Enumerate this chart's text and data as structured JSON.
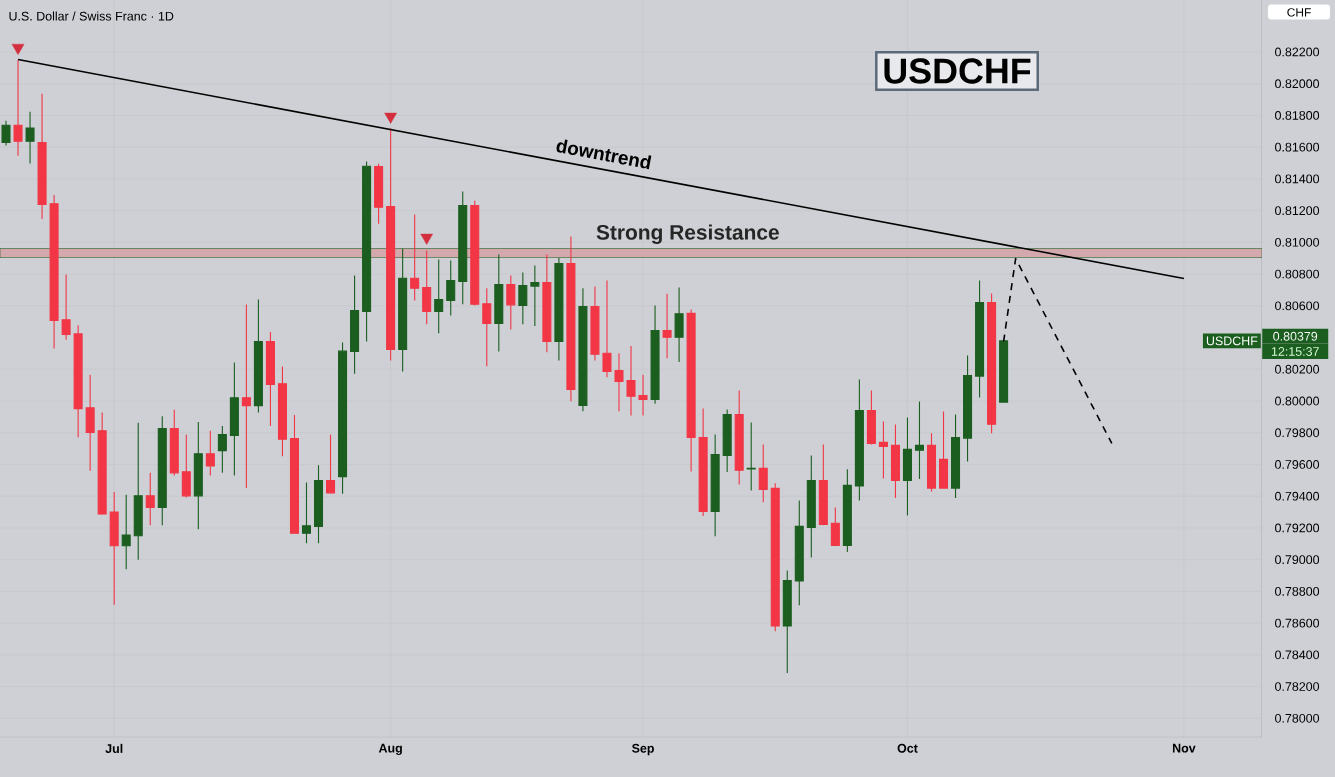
{
  "chart_data": {
    "type": "candlestick",
    "title": "U.S. Dollar / Swiss Franc · 1D",
    "categories": [
      null,
      null,
      null,
      null,
      null,
      null,
      null,
      null,
      null,
      "Jul",
      null,
      null,
      null,
      null,
      null,
      null,
      null,
      null,
      null,
      null,
      null,
      null,
      null,
      null,
      null,
      null,
      null,
      null,
      null,
      null,
      null,
      null,
      "Aug",
      null,
      null,
      null,
      null,
      null,
      null,
      null,
      null,
      null,
      null,
      null,
      null,
      null,
      null,
      null,
      null,
      null,
      null,
      null,
      null,
      "Sep",
      null,
      null,
      null,
      null,
      null,
      null,
      null,
      null,
      null,
      null,
      null,
      null,
      null,
      null,
      null,
      null,
      null,
      null,
      null,
      null,
      null,
      "Oct",
      null,
      null,
      null,
      null,
      null,
      null,
      null,
      null,
      null,
      null,
      null,
      null,
      null,
      null,
      null,
      null,
      null,
      null,
      null,
      null,
      null,
      null,
      "Nov",
      null,
      null,
      null,
      null,
      null,
      null
    ],
    "ohlc": [
      [
        0.81629,
        0.81767,
        0.8161,
        0.81738
      ],
      [
        0.81738,
        0.82149,
        0.81545,
        0.81637
      ],
      [
        0.81637,
        0.81823,
        0.81497,
        0.81721
      ],
      [
        0.81629,
        0.81936,
        0.81147,
        0.81239
      ],
      [
        0.81243,
        0.81299,
        0.80331,
        0.80507
      ],
      [
        0.80512,
        0.80797,
        0.80386,
        0.8042
      ],
      [
        0.80423,
        0.80478,
        0.79771,
        0.79952
      ],
      [
        0.79957,
        0.80165,
        0.79561,
        0.79802
      ],
      [
        0.79812,
        0.79928,
        0.79283,
        0.79288
      ],
      [
        0.793,
        0.79426,
        0.78716,
        0.79088
      ],
      [
        0.79088,
        0.79409,
        0.78939,
        0.79155
      ],
      [
        0.79151,
        0.79863,
        0.78999,
        0.79402
      ],
      [
        0.79402,
        0.79547,
        0.79216,
        0.79329
      ],
      [
        0.79329,
        0.79904,
        0.79216,
        0.79827
      ],
      [
        0.79827,
        0.79945,
        0.7953,
        0.79547
      ],
      [
        0.79554,
        0.79788,
        0.79392,
        0.79402
      ],
      [
        0.79402,
        0.79867,
        0.79192,
        0.79667
      ],
      [
        0.79667,
        0.79812,
        0.7953,
        0.7959
      ],
      [
        0.79687,
        0.79843,
        0.79547,
        0.79788
      ],
      [
        0.79783,
        0.80242,
        0.7953,
        0.8002
      ],
      [
        0.8002,
        0.80608,
        0.79452,
        0.79971
      ],
      [
        0.79971,
        0.8064,
        0.79928,
        0.80374
      ],
      [
        0.80374,
        0.80435,
        0.79843,
        0.80104
      ],
      [
        0.80109,
        0.80218,
        0.79651,
        0.79759
      ],
      [
        0.79764,
        0.79911,
        0.79163,
        0.79167
      ],
      [
        0.79167,
        0.79486,
        0.79103,
        0.79213
      ],
      [
        0.79209,
        0.79595,
        0.79103,
        0.79498
      ],
      [
        0.79498,
        0.79788,
        0.79416,
        0.79421
      ],
      [
        0.79523,
        0.80368,
        0.79416,
        0.80314
      ],
      [
        0.80312,
        0.80791,
        0.80172,
        0.8057
      ],
      [
        0.80564,
        0.81509,
        0.80375,
        0.8148
      ],
      [
        0.81478,
        0.81495,
        0.81117,
        0.81221
      ],
      [
        0.81226,
        0.81719,
        0.80255,
        0.80325
      ],
      [
        0.80325,
        0.80959,
        0.80186,
        0.80774
      ],
      [
        0.80774,
        0.81175,
        0.80633,
        0.80711
      ],
      [
        0.80715,
        0.80948,
        0.80484,
        0.80564
      ],
      [
        0.80564,
        0.80892,
        0.80427,
        0.8064
      ],
      [
        0.80633,
        0.80885,
        0.80539,
        0.80759
      ],
      [
        0.80753,
        0.8132,
        0.8061,
        0.81232
      ],
      [
        0.81232,
        0.81262,
        0.80602,
        0.8061
      ],
      [
        0.80613,
        0.80711,
        0.80219,
        0.80489
      ],
      [
        0.80489,
        0.80923,
        0.80312,
        0.80734
      ],
      [
        0.80734,
        0.80791,
        0.80451,
        0.80606
      ],
      [
        0.80602,
        0.8081,
        0.80484,
        0.80728
      ],
      [
        0.80724,
        0.80854,
        0.80472,
        0.80747
      ],
      [
        0.80747,
        0.80923,
        0.80308,
        0.80375
      ],
      [
        0.80375,
        0.80902,
        0.80255,
        0.80867
      ],
      [
        0.80867,
        0.81037,
        0.79999,
        0.80073
      ],
      [
        0.79972,
        0.80711,
        0.79936,
        0.80596
      ],
      [
        0.80596,
        0.80722,
        0.80255,
        0.80295
      ],
      [
        0.80301,
        0.80759,
        0.8015,
        0.80186
      ],
      [
        0.80192,
        0.80301,
        0.79936,
        0.80123
      ],
      [
        0.80129,
        0.80346,
        0.79909,
        0.8003
      ],
      [
        0.80035,
        0.80165,
        0.79909,
        0.8001
      ],
      [
        0.8001,
        0.80602,
        0.79983,
        0.80444
      ],
      [
        0.80444,
        0.80676,
        0.8027,
        0.80402
      ],
      [
        0.80402,
        0.80715,
        0.80245,
        0.8055
      ],
      [
        0.80552,
        0.80577,
        0.79556,
        0.7977
      ],
      [
        0.7977,
        0.79953,
        0.79275,
        0.79304
      ],
      [
        0.79304,
        0.79789,
        0.79147,
        0.79663
      ],
      [
        0.79657,
        0.79947,
        0.79552,
        0.79915
      ],
      [
        0.79915,
        0.80066,
        0.79474,
        0.79564
      ],
      [
        0.79572,
        0.79865,
        0.79436,
        0.79575
      ],
      [
        0.79575,
        0.79726,
        0.79361,
        0.79443
      ],
      [
        0.79449,
        0.79481,
        0.78548,
        0.78582
      ],
      [
        0.78582,
        0.78932,
        0.78285,
        0.78869
      ],
      [
        0.78865,
        0.79373,
        0.78712,
        0.7921
      ],
      [
        0.79203,
        0.79657,
        0.79014,
        0.79499
      ],
      [
        0.79499,
        0.79726,
        0.79216,
        0.79222
      ],
      [
        0.79229,
        0.79329,
        0.7909,
        0.7909
      ],
      [
        0.7909,
        0.79569,
        0.79048,
        0.79468
      ],
      [
        0.79464,
        0.80136,
        0.79373,
        0.7994
      ],
      [
        0.7994,
        0.80066,
        0.79726,
        0.79733
      ],
      [
        0.79739,
        0.79871,
        0.79512,
        0.79714
      ],
      [
        0.7972,
        0.79852,
        0.79388,
        0.79499
      ],
      [
        0.79499,
        0.79896,
        0.79279,
        0.79695
      ],
      [
        0.7969,
        0.79997,
        0.79508,
        0.7972
      ],
      [
        0.7972,
        0.79796,
        0.7943,
        0.79451
      ],
      [
        0.79632,
        0.79934,
        0.79451,
        0.79451
      ],
      [
        0.79451,
        0.79915,
        0.79388,
        0.7977
      ],
      [
        0.79766,
        0.80287,
        0.79619,
        0.80161
      ],
      [
        0.80157,
        0.80759,
        0.80022,
        0.80621
      ],
      [
        0.80621,
        0.80678,
        0.79797,
        0.79854
      ],
      [
        0.79993,
        0.80379,
        0.79993,
        0.80379
      ],
      null,
      null,
      null,
      null,
      null,
      null,
      null,
      null,
      null,
      null,
      null,
      null,
      null,
      null,
      null,
      null,
      null,
      null,
      null,
      null,
      null
    ],
    "colors": [
      "#1b5e20",
      "#f23645",
      "#1b5e20",
      "#f23645",
      "#f23645",
      "#f23645",
      "#f23645",
      "#f23645",
      "#f23645",
      "#f23645",
      "#1b5e20",
      "#1b5e20",
      "#f23645",
      "#1b5e20",
      "#f23645",
      "#f23645",
      "#1b5e20",
      "#f23645",
      "#1b5e20",
      "#1b5e20",
      "#f23645",
      "#1b5e20",
      "#f23645",
      "#f23645",
      "#f23645",
      "#1b5e20",
      "#1b5e20",
      "#f23645",
      "#1b5e20",
      "#1b5e20",
      "#1b5e20",
      "#f23645",
      "#f23645",
      "#1b5e20",
      "#f23645",
      "#f23645",
      "#1b5e20",
      "#1b5e20",
      "#1b5e20",
      "#f23645",
      "#f23645",
      "#1b5e20",
      "#f23645",
      "#1b5e20",
      "#1b5e20",
      "#f23645",
      "#1b5e20",
      "#f23645",
      "#1b5e20",
      "#f23645",
      "#f23645",
      "#f23645",
      "#f23645",
      "#f23645",
      "#1b5e20",
      "#f23645",
      "#1b5e20",
      "#f23645",
      "#f23645",
      "#1b5e20",
      "#1b5e20",
      "#f23645",
      "#1b5e20",
      "#f23645",
      "#f23645",
      "#1b5e20",
      "#1b5e20",
      "#1b5e20",
      "#f23645",
      "#f23645",
      "#1b5e20",
      "#1b5e20",
      "#f23645",
      "#f23645",
      "#f23645",
      "#1b5e20",
      "#1b5e20",
      "#f23645",
      "#f23645",
      "#1b5e20",
      "#1b5e20",
      "#1b5e20",
      "#f23645",
      "#1b5e20",
      null,
      null,
      null,
      null,
      null,
      null,
      null,
      null,
      null,
      null,
      null,
      null,
      null,
      null,
      null,
      null,
      null,
      null,
      null,
      null,
      null
    ],
    "series": [
      {
        "type": "line",
        "color": "#000000",
        "line_style": "solid",
        "values": [
          null,
          0.82152,
          null,
          null,
          null,
          null,
          null,
          null,
          null,
          null,
          null,
          null,
          null,
          null,
          null,
          null,
          null,
          null,
          null,
          null,
          null,
          null,
          null,
          null,
          null,
          null,
          null,
          null,
          null,
          null,
          null,
          null,
          null,
          null,
          null,
          null,
          null,
          null,
          null,
          null,
          null,
          null,
          null,
          null,
          null,
          null,
          null,
          null,
          null,
          null,
          null,
          null,
          null,
          null,
          null,
          null,
          null,
          null,
          null,
          null,
          null,
          null,
          null,
          null,
          null,
          null,
          null,
          null,
          null,
          null,
          null,
          null,
          null,
          null,
          null,
          null,
          null,
          null,
          null,
          null,
          null,
          null,
          null,
          null,
          null,
          null,
          null,
          null,
          null,
          null,
          null,
          null,
          null,
          null,
          null,
          null,
          null,
          null,
          0.80772,
          null,
          null,
          null,
          null,
          null,
          null
        ]
      },
      {
        "type": "line",
        "color": "#000000",
        "line_style": "dashed",
        "values": [
          null,
          null,
          null,
          null,
          null,
          null,
          null,
          null,
          null,
          null,
          null,
          null,
          null,
          null,
          null,
          null,
          null,
          null,
          null,
          null,
          null,
          null,
          null,
          null,
          null,
          null,
          null,
          null,
          null,
          null,
          null,
          null,
          null,
          null,
          null,
          null,
          null,
          null,
          null,
          null,
          null,
          null,
          null,
          null,
          null,
          null,
          null,
          null,
          null,
          null,
          null,
          null,
          null,
          null,
          null,
          null,
          null,
          null,
          null,
          null,
          null,
          null,
          null,
          null,
          null,
          null,
          null,
          null,
          null,
          null,
          null,
          null,
          null,
          null,
          null,
          null,
          null,
          null,
          null,
          null,
          null,
          null,
          null,
          0.80375,
          0.80898,
          null,
          null,
          null,
          null,
          null,
          null,
          null,
          0.79733,
          null,
          null,
          null,
          null,
          null,
          null,
          null,
          null,
          null,
          null,
          null,
          null
        ]
      },
      {
        "type": "scatter",
        "color": "#d32f3f",
        "marker": "triangle",
        "values": [
          null,
          0.82227,
          null,
          null,
          null,
          null,
          null,
          null,
          null,
          null,
          null,
          null,
          null,
          null,
          null,
          null,
          null,
          null,
          null,
          null,
          null,
          null,
          null,
          null,
          null,
          null,
          null,
          null,
          null,
          null,
          null,
          null,
          0.81793,
          null,
          null,
          0.8103,
          null,
          null,
          null,
          null,
          null,
          null,
          null,
          null,
          null,
          null,
          null,
          null,
          null,
          null,
          null,
          null,
          null,
          null,
          null,
          null,
          null,
          null,
          null,
          null,
          null,
          null,
          null,
          null,
          null,
          null,
          null,
          null,
          null,
          null,
          null,
          null,
          null,
          null,
          null,
          null,
          null,
          null,
          null,
          null,
          null,
          null,
          null,
          null,
          null,
          null,
          null,
          null,
          null,
          null,
          null,
          null,
          null,
          null,
          null,
          null,
          null,
          null,
          null,
          null,
          null,
          null,
          null,
          null,
          null
        ]
      }
    ],
    "bands": [
      {
        "axis": "y",
        "from": 0.80904,
        "to": 0.80961,
        "label": "Strong Resistance",
        "color": "#d3a9ae"
      }
    ],
    "annotations": [
      "USDCHF",
      "CHF",
      "USDCHF",
      "0.80379",
      "12:15:37",
      "downtrend"
    ],
    "ylim": [
      0.7788,
      0.8262
    ],
    "yticks": [
      {
        "value": 0.78,
        "label": "0.78000"
      },
      {
        "value": 0.782,
        "label": "0.78200"
      },
      {
        "value": 0.784,
        "label": "0.78400"
      },
      {
        "value": 0.786,
        "label": "0.78600"
      },
      {
        "value": 0.788,
        "label": "0.78800"
      },
      {
        "value": 0.79,
        "label": "0.79000"
      },
      {
        "value": 0.792,
        "label": "0.79200"
      },
      {
        "value": 0.794,
        "label": "0.79400"
      },
      {
        "value": 0.796,
        "label": "0.79600"
      },
      {
        "value": 0.798,
        "label": "0.79800"
      },
      {
        "value": 0.8,
        "label": "0.80000"
      },
      {
        "value": 0.802,
        "label": "0.80200"
      },
      {
        "value": 0.806,
        "label": "0.80600"
      },
      {
        "value": 0.808,
        "label": "0.80800"
      },
      {
        "value": 0.81,
        "label": "0.81000"
      },
      {
        "value": 0.812,
        "label": "0.81200"
      },
      {
        "value": 0.814,
        "label": "0.81400"
      },
      {
        "value": 0.816,
        "label": "0.81600"
      },
      {
        "value": 0.818,
        "label": "0.81800"
      },
      {
        "value": 0.82,
        "label": "0.82000"
      },
      {
        "value": 0.822,
        "label": "0.82200"
      }
    ],
    "grid": true
  }
}
